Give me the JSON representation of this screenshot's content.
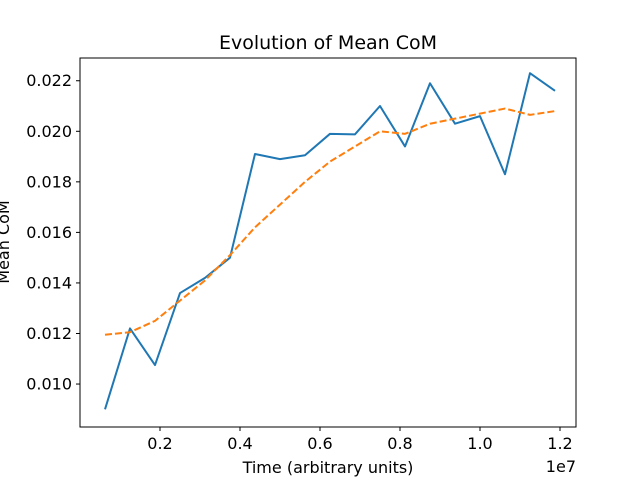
{
  "chart_data": {
    "type": "line",
    "title": "Evolution of Mean CoM",
    "xlabel": "Time (arbitrary units)",
    "ylabel": "Mean CoM",
    "x_scale_label": "1e7",
    "xlim": [
      0.0,
      1.24
    ],
    "ylim": [
      0.0083,
      0.0229
    ],
    "x_ticks": [
      0.2,
      0.4,
      0.6,
      0.8,
      1.0,
      1.2
    ],
    "x_tick_labels": [
      "0.2",
      "0.4",
      "0.6",
      "0.8",
      "1.0",
      "1.2"
    ],
    "y_ticks": [
      0.01,
      0.012,
      0.014,
      0.016,
      0.018,
      0.02,
      0.022
    ],
    "y_tick_labels": [
      "0.010",
      "0.012",
      "0.014",
      "0.016",
      "0.018",
      "0.020",
      "0.022"
    ],
    "grid": false,
    "legend": false,
    "x": [
      0.0625,
      0.125,
      0.1875,
      0.25,
      0.3125,
      0.375,
      0.4375,
      0.5,
      0.5625,
      0.625,
      0.6875,
      0.75,
      0.8125,
      0.875,
      0.9375,
      1.0,
      1.0625,
      1.125,
      1.1875
    ],
    "series": [
      {
        "color": "#1f77b4",
        "style": "solid",
        "values": [
          0.009,
          0.0122,
          0.01075,
          0.0136,
          0.0142,
          0.015,
          0.0191,
          0.0189,
          0.01905,
          0.0199,
          0.01988,
          0.021,
          0.0194,
          0.0219,
          0.0203,
          0.0206,
          0.0183,
          0.0223,
          0.0216
        ]
      },
      {
        "color": "#ff7f0e",
        "style": "dashed",
        "values": [
          0.01195,
          0.01205,
          0.0125,
          0.0133,
          0.0141,
          0.0151,
          0.0162,
          0.0171,
          0.018,
          0.0188,
          0.0194,
          0.02,
          0.0199,
          0.0203,
          0.0205,
          0.0207,
          0.0209,
          0.02065,
          0.0208
        ]
      }
    ]
  }
}
